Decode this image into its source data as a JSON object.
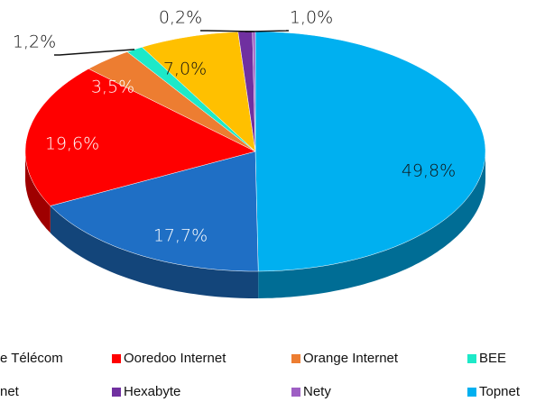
{
  "chart_data": {
    "type": "pie3d",
    "categories": [
      "e Télécom",
      "Ooredoo Internet",
      "Orange Internet",
      "BEE",
      "net",
      "Hexabyte",
      "Nety",
      "Topnet"
    ],
    "values": [
      17.7,
      19.6,
      3.5,
      1.2,
      7.0,
      1.0,
      0.2,
      49.8
    ],
    "value_labels": [
      "17,7%",
      "19,6%",
      "3,5%",
      "1,2%",
      "7,0%",
      "1,0%",
      "0,2%",
      "49,8%"
    ],
    "colors": [
      "#1f6fc5",
      "#ff0000",
      "#ed7d31",
      "#1de9c8",
      "#ffc000",
      "#7030a0",
      "#9e5fc4",
      "#00b0f0"
    ],
    "start": "Topnet"
  }
}
